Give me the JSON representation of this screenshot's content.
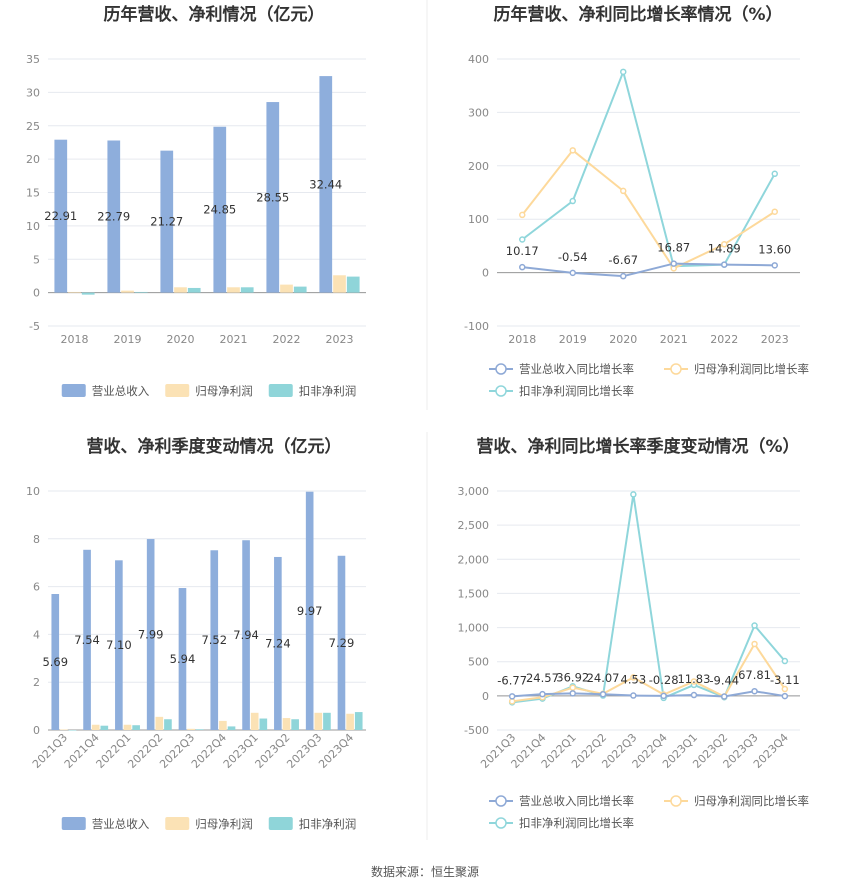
{
  "source_text": "数据来源：恒生聚源",
  "chart_data": [
    {
      "id": "annual-bar",
      "type": "bar",
      "title": "历年营收、净利情况（亿元）",
      "categories": [
        "2018",
        "2019",
        "2020",
        "2021",
        "2022",
        "2023"
      ],
      "ylim": [
        -5,
        35
      ],
      "yticks": [
        -5,
        0,
        5,
        10,
        15,
        20,
        25,
        30,
        35
      ],
      "grid": true,
      "legend_position": "bottom",
      "series": [
        {
          "name": "营业总收入",
          "color": "#8eaedc",
          "values": [
            22.91,
            22.79,
            21.27,
            24.85,
            28.55,
            32.44
          ],
          "labels": [
            "22.91",
            "22.79",
            "21.27",
            "24.85",
            "28.55",
            "32.44"
          ]
        },
        {
          "name": "归母净利润",
          "color": "#fbe2b5",
          "values": [
            0.1,
            0.3,
            0.8,
            0.8,
            1.2,
            2.6
          ]
        },
        {
          "name": "扣非净利润",
          "color": "#8fd5d9",
          "values": [
            -0.3,
            0.1,
            0.7,
            0.8,
            0.9,
            2.4
          ]
        }
      ]
    },
    {
      "id": "annual-line",
      "type": "line",
      "title": "历年营收、净利同比增长率情况（%）",
      "categories": [
        "2018",
        "2019",
        "2020",
        "2021",
        "2022",
        "2023"
      ],
      "ylim": [
        -100,
        400
      ],
      "yticks": [
        -100,
        0,
        100,
        200,
        300,
        400
      ],
      "grid": true,
      "legend_position": "bottom",
      "series": [
        {
          "name": "营业总收入同比增长率",
          "color": "#8ea9d6",
          "values": [
            10.17,
            -0.54,
            -6.67,
            16.87,
            14.89,
            13.6
          ],
          "labels": [
            "10.17",
            "-0.54",
            "-6.67",
            "16.87",
            "14.89",
            "13.60"
          ]
        },
        {
          "name": "归母净利润同比增长率",
          "color": "#fdd99b",
          "values": [
            108,
            229,
            153,
            8,
            53,
            114
          ]
        },
        {
          "name": "扣非净利润同比增长率",
          "color": "#8fd6db",
          "values": [
            62,
            134,
            376,
            12,
            15,
            185
          ]
        }
      ]
    },
    {
      "id": "quarter-bar",
      "type": "bar",
      "title": "营收、净利季度变动情况（亿元）",
      "categories": [
        "2021Q3",
        "2021Q4",
        "2022Q1",
        "2022Q2",
        "2022Q3",
        "2022Q4",
        "2023Q1",
        "2023Q2",
        "2023Q3",
        "2023Q4"
      ],
      "ylim": [
        0,
        10
      ],
      "yticks": [
        0,
        2,
        4,
        6,
        8,
        10
      ],
      "grid": true,
      "legend_position": "bottom",
      "series": [
        {
          "name": "营业总收入",
          "color": "#8eaedc",
          "values": [
            5.69,
            7.54,
            7.1,
            7.99,
            5.94,
            7.52,
            7.94,
            7.24,
            9.97,
            7.29
          ],
          "labels": [
            "5.69",
            "7.54",
            "7.10",
            "7.99",
            "5.94",
            "7.52",
            "7.94",
            "7.24",
            "9.97",
            "7.29"
          ]
        },
        {
          "name": "归母净利润",
          "color": "#fbe2b5",
          "values": [
            0.02,
            0.22,
            0.22,
            0.55,
            0.05,
            0.38,
            0.72,
            0.5,
            0.72,
            0.68
          ]
        },
        {
          "name": "扣非净利润",
          "color": "#8fd5d9",
          "values": [
            0.0,
            0.18,
            0.2,
            0.45,
            0.03,
            0.15,
            0.48,
            0.45,
            0.72,
            0.75
          ]
        }
      ]
    },
    {
      "id": "quarter-line",
      "type": "line",
      "title": "营收、净利同比增长率季度变动情况（%）",
      "categories": [
        "2021Q3",
        "2021Q4",
        "2022Q1",
        "2022Q2",
        "2022Q3",
        "2022Q4",
        "2023Q1",
        "2023Q2",
        "2023Q3",
        "2023Q4"
      ],
      "ylim": [
        -500,
        3000
      ],
      "yticks": [
        -500,
        0,
        500,
        1000,
        1500,
        2000,
        2500,
        3000
      ],
      "ytick_labels": [
        "-500",
        "0",
        "500",
        "1,000",
        "1,500",
        "2,000",
        "2,500",
        "3,000"
      ],
      "grid": true,
      "legend_position": "bottom",
      "series": [
        {
          "name": "营业总收入同比增长率",
          "color": "#8ea9d6",
          "values": [
            -6.77,
            24.57,
            36.92,
            24.07,
            4.53,
            -0.28,
            11.83,
            -9.44,
            67.81,
            -3.11
          ],
          "labels": [
            "-6.77",
            "24.57",
            "36.92",
            "24.07",
            "4.53",
            "-0.28",
            "11.83",
            "-9.44",
            "67.81",
            "-3.11"
          ]
        },
        {
          "name": "归母净利润同比增长率",
          "color": "#fdd99b",
          "values": [
            -80,
            -20,
            120,
            30,
            270,
            20,
            210,
            -10,
            760,
            100
          ]
        },
        {
          "name": "扣非净利润同比增长率",
          "color": "#8fd6db",
          "values": [
            -95,
            -40,
            140,
            5,
            2950,
            -30,
            160,
            -20,
            1030,
            510
          ]
        }
      ]
    }
  ]
}
